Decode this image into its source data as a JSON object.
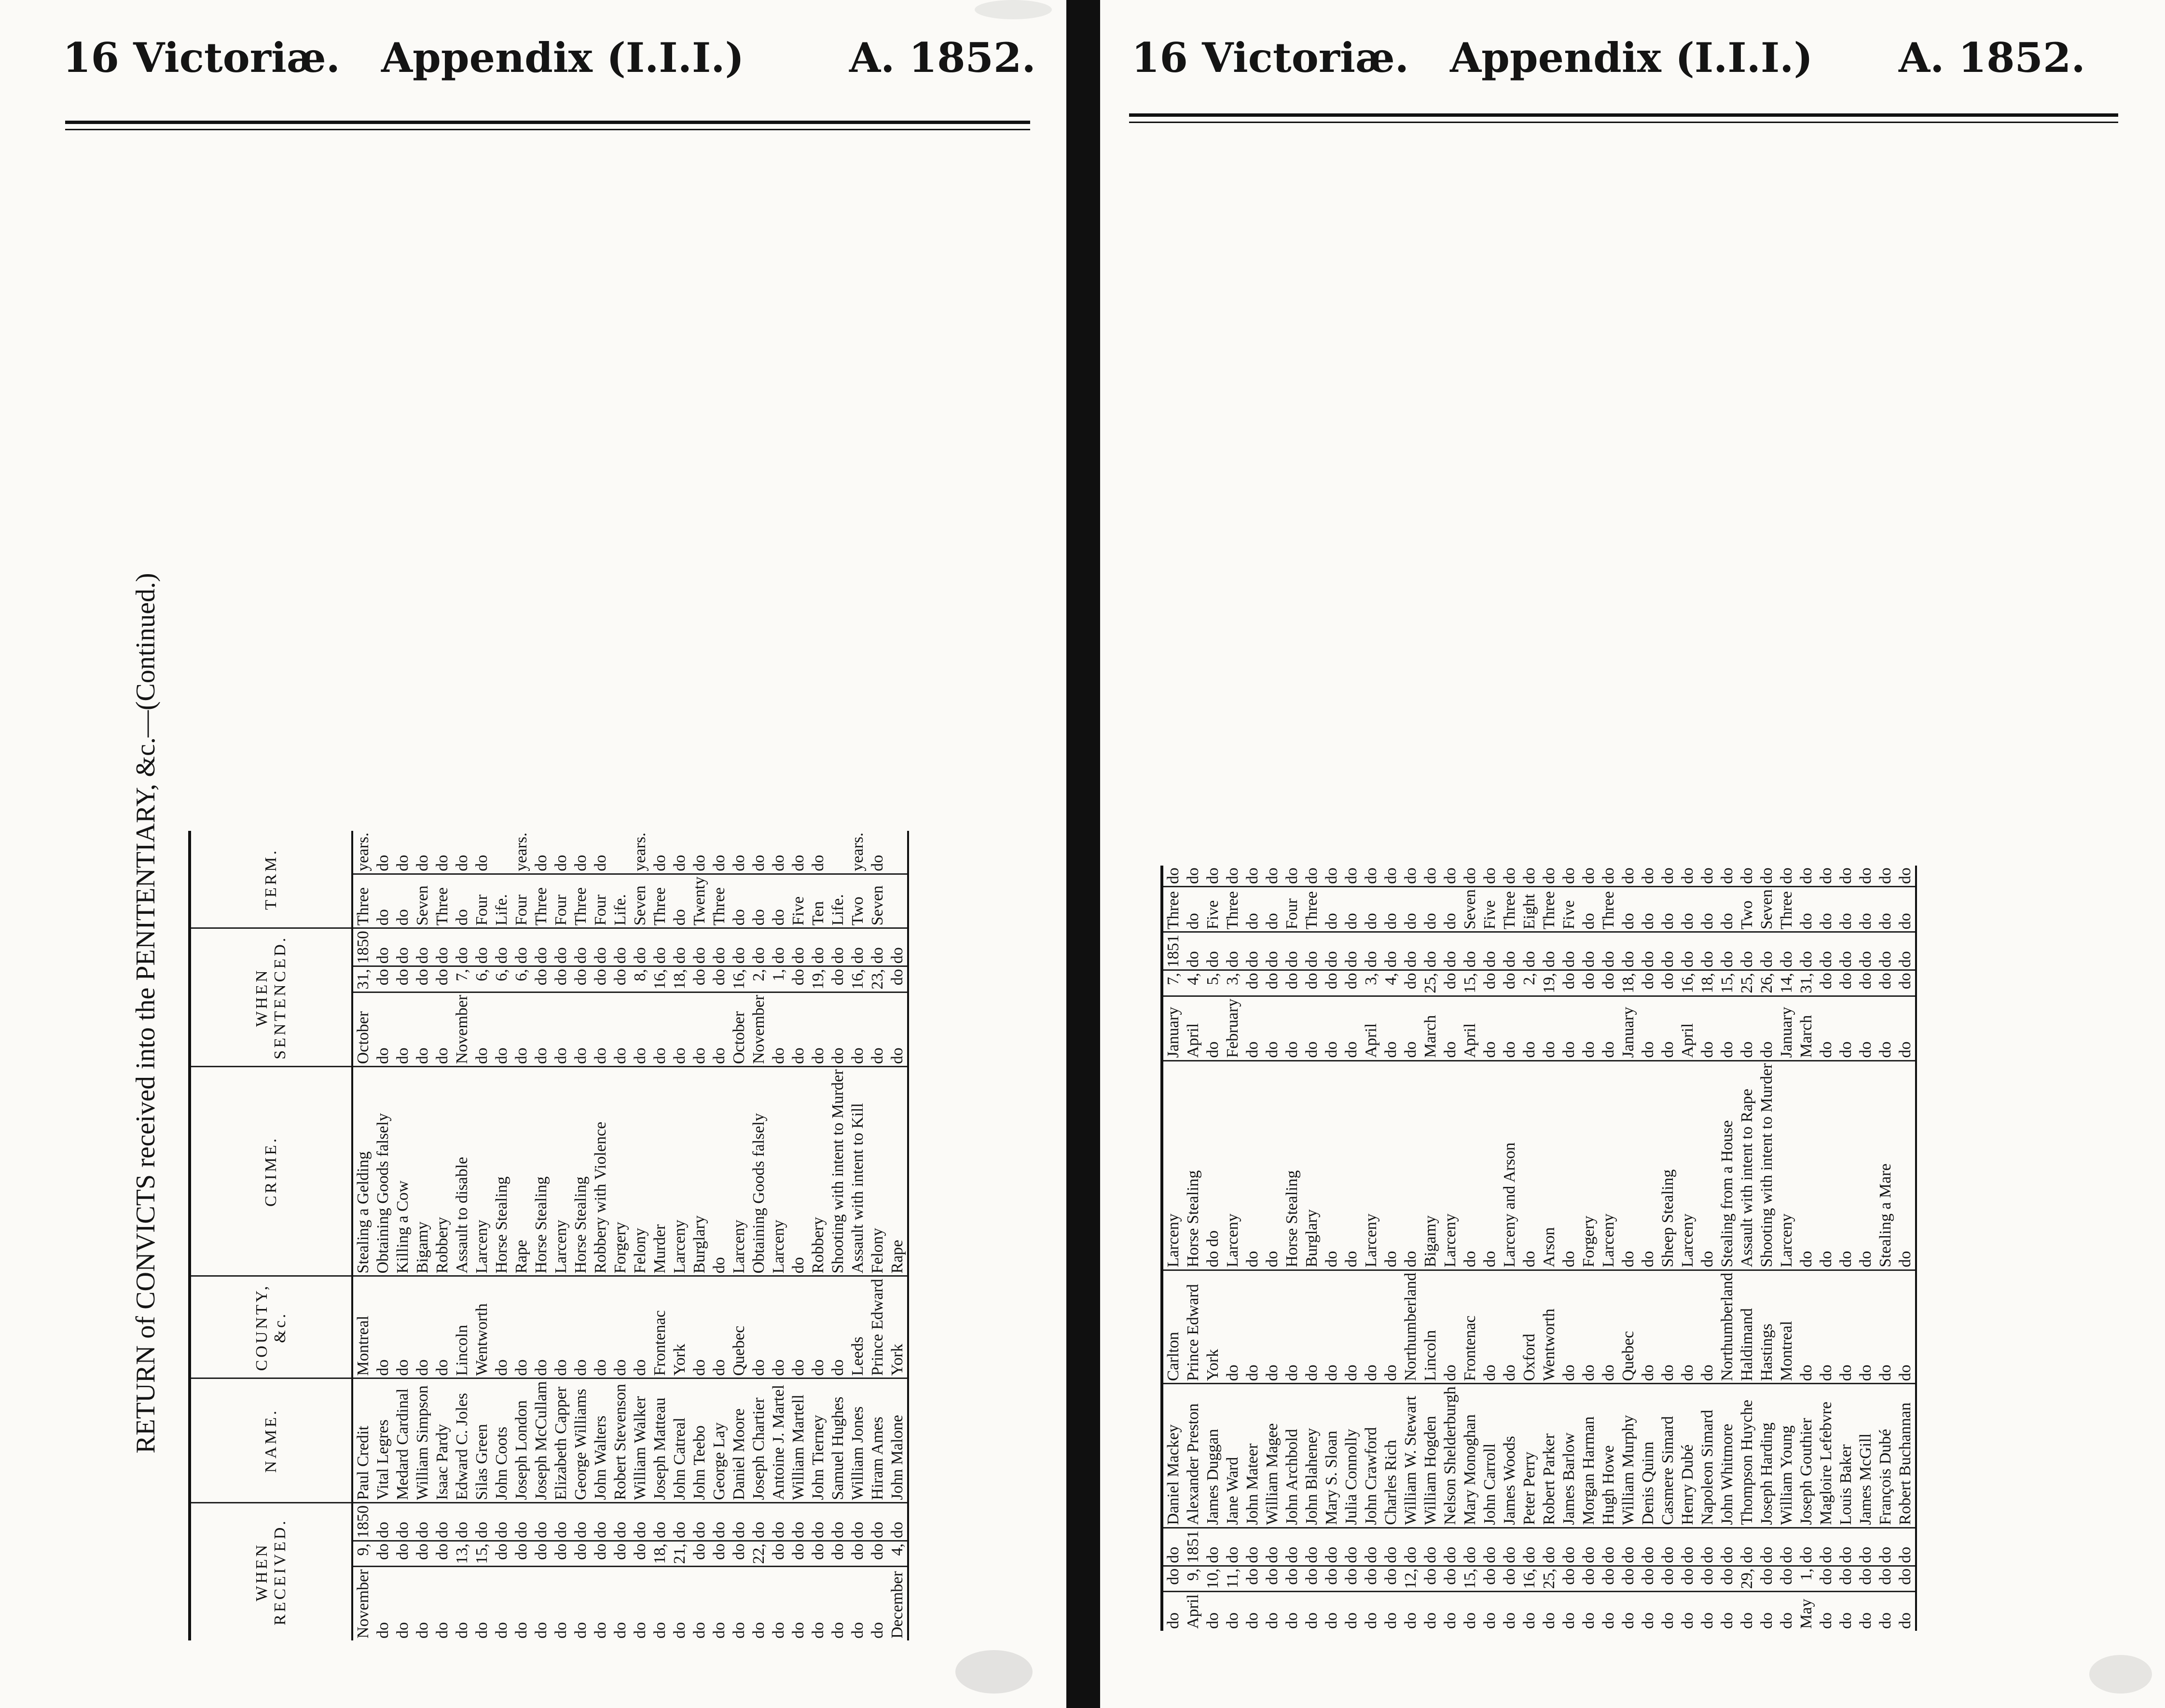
{
  "left_page": {
    "header": {
      "session": "16 Victoriæ.",
      "appendix": "Appendix (I.I.I.)",
      "year": "A. 1852."
    },
    "title": "RETURN of CONVICTS received into the PENITENTIARY, &c.—(Continued.)",
    "columns": {
      "when_received": "WHEN RECEIVED.",
      "name": "NAME.",
      "county": "COUNTY, &c.",
      "crime": "CRIME.",
      "when_sentenced": "WHEN SENTENCED.",
      "term": "TERM."
    },
    "rows": [
      {
        "rm": "November",
        "rd": "9,",
        "ry": "1850",
        "name": "Paul Credit",
        "county": "Montreal",
        "crime": "Stealing a Gelding",
        "sm": "October",
        "sd": "31,",
        "sy": "1850",
        "tn": "Three",
        "tu": "years."
      },
      {
        "rm": "do",
        "rd": "do",
        "ry": "do",
        "name": "Vital Legres",
        "county": "do",
        "crime": "Obtaining Goods falsely",
        "sm": "do",
        "sd": "do",
        "sy": "do",
        "tn": "do",
        "tu": "do"
      },
      {
        "rm": "do",
        "rd": "do",
        "ry": "do",
        "name": "Medard Cardinal",
        "county": "do",
        "crime": "Killing a Cow",
        "sm": "do",
        "sd": "do",
        "sy": "do",
        "tn": "do",
        "tu": "do"
      },
      {
        "rm": "do",
        "rd": "do",
        "ry": "do",
        "name": "William Simpson",
        "county": "do",
        "crime": "Bigamy",
        "sm": "do",
        "sd": "do",
        "sy": "do",
        "tn": "Seven",
        "tu": "do"
      },
      {
        "rm": "do",
        "rd": "do",
        "ry": "do",
        "name": "Isaac Pardy",
        "county": "do",
        "crime": "Robbery",
        "sm": "do",
        "sd": "do",
        "sy": "do",
        "tn": "Three",
        "tu": "do"
      },
      {
        "rm": "do",
        "rd": "13,",
        "ry": "do",
        "name": "Edward C. Joles",
        "county": "Lincoln",
        "crime": "Assault to disable",
        "sm": "November",
        "sd": "7,",
        "sy": "do",
        "tn": "do",
        "tu": "do"
      },
      {
        "rm": "do",
        "rd": "15,",
        "ry": "do",
        "name": "Silas Green",
        "county": "Wentworth",
        "crime": "Larceny",
        "sm": "do",
        "sd": "6,",
        "sy": "do",
        "tn": "Four",
        "tu": "do"
      },
      {
        "rm": "do",
        "rd": "do",
        "ry": "do",
        "name": "John Coots",
        "county": "do",
        "crime": "Horse Stealing",
        "sm": "do",
        "sd": "6,",
        "sy": "do",
        "tn": "Life.",
        "tu": ""
      },
      {
        "rm": "do",
        "rd": "do",
        "ry": "do",
        "name": "Joseph London",
        "county": "do",
        "crime": "Rape",
        "sm": "do",
        "sd": "6,",
        "sy": "do",
        "tn": "Four",
        "tu": "years."
      },
      {
        "rm": "do",
        "rd": "do",
        "ry": "do",
        "name": "Joseph McCullam",
        "county": "do",
        "crime": "Horse Stealing",
        "sm": "do",
        "sd": "do",
        "sy": "do",
        "tn": "Three",
        "tu": "do"
      },
      {
        "rm": "do",
        "rd": "do",
        "ry": "do",
        "name": "Elizabeth Capper",
        "county": "do",
        "crime": "Larceny",
        "sm": "do",
        "sd": "do",
        "sy": "do",
        "tn": "Four",
        "tu": "do"
      },
      {
        "rm": "do",
        "rd": "do",
        "ry": "do",
        "name": "George Williams",
        "county": "do",
        "crime": "Horse Stealing",
        "sm": "do",
        "sd": "do",
        "sy": "do",
        "tn": "Three",
        "tu": "do"
      },
      {
        "rm": "do",
        "rd": "do",
        "ry": "do",
        "name": "John Walters",
        "county": "do",
        "crime": "Robbery with Violence",
        "sm": "do",
        "sd": "do",
        "sy": "do",
        "tn": "Four",
        "tu": "do"
      },
      {
        "rm": "do",
        "rd": "do",
        "ry": "do",
        "name": "Robert Stevenson",
        "county": "do",
        "crime": "Forgery",
        "sm": "do",
        "sd": "do",
        "sy": "do",
        "tn": "Life.",
        "tu": ""
      },
      {
        "rm": "do",
        "rd": "do",
        "ry": "do",
        "name": "William Walker",
        "county": "do",
        "crime": "Felony",
        "sm": "do",
        "sd": "8,",
        "sy": "do",
        "tn": "Seven",
        "tu": "years."
      },
      {
        "rm": "do",
        "rd": "18,",
        "ry": "do",
        "name": "Joseph Matteau",
        "county": "Frontenac",
        "crime": "Murder",
        "sm": "do",
        "sd": "16,",
        "sy": "do",
        "tn": "Three",
        "tu": "do"
      },
      {
        "rm": "do",
        "rd": "21,",
        "ry": "do",
        "name": "John Catreal",
        "county": "York",
        "crime": "Larceny",
        "sm": "do",
        "sd": "18,",
        "sy": "do",
        "tn": "do",
        "tu": "do"
      },
      {
        "rm": "do",
        "rd": "do",
        "ry": "do",
        "name": "John Teebo",
        "county": "do",
        "crime": "Burglary",
        "sm": "do",
        "sd": "do",
        "sy": "do",
        "tn": "Twenty",
        "tu": "do"
      },
      {
        "rm": "do",
        "rd": "do",
        "ry": "do",
        "name": "George Lay",
        "county": "do",
        "crime": "do",
        "sm": "do",
        "sd": "do",
        "sy": "do",
        "tn": "Three",
        "tu": "do"
      },
      {
        "rm": "do",
        "rd": "do",
        "ry": "do",
        "name": "Daniel Moore",
        "county": "Quebec",
        "crime": "Larceny",
        "sm": "October",
        "sd": "16,",
        "sy": "do",
        "tn": "do",
        "tu": "do"
      },
      {
        "rm": "do",
        "rd": "22,",
        "ry": "do",
        "name": "Joseph Chartier",
        "county": "do",
        "crime": "Obtaining Goods falsely",
        "sm": "November",
        "sd": "2,",
        "sy": "do",
        "tn": "do",
        "tu": "do"
      },
      {
        "rm": "do",
        "rd": "do",
        "ry": "do",
        "name": "Antoine J. Martel",
        "county": "do",
        "crime": "Larceny",
        "sm": "do",
        "sd": "1,",
        "sy": "do",
        "tn": "do",
        "tu": "do"
      },
      {
        "rm": "do",
        "rd": "do",
        "ry": "do",
        "name": "William Martell",
        "county": "do",
        "crime": "do",
        "sm": "do",
        "sd": "do",
        "sy": "do",
        "tn": "Five",
        "tu": "do"
      },
      {
        "rm": "do",
        "rd": "do",
        "ry": "do",
        "name": "John Tierney",
        "county": "do",
        "crime": "Robbery",
        "sm": "do",
        "sd": "19,",
        "sy": "do",
        "tn": "Ten",
        "tu": "do"
      },
      {
        "rm": "do",
        "rd": "do",
        "ry": "do",
        "name": "Samuel Hughes",
        "county": "do",
        "crime": "Shooting with intent to Murder",
        "sm": "do",
        "sd": "do",
        "sy": "do",
        "tn": "Life.",
        "tu": ""
      },
      {
        "rm": "do",
        "rd": "do",
        "ry": "do",
        "name": "William Jones",
        "county": "Leeds",
        "crime": "Assault with intent to Kill",
        "sm": "do",
        "sd": "16,",
        "sy": "do",
        "tn": "Two",
        "tu": "years."
      },
      {
        "rm": "do",
        "rd": "do",
        "ry": "do",
        "name": "Hiram Ames",
        "county": "Prince Edward",
        "crime": "Felony",
        "sm": "do",
        "sd": "23,",
        "sy": "do",
        "tn": "Seven",
        "tu": "do"
      },
      {
        "rm": "December",
        "rd": "4,",
        "ry": "do",
        "name": "John Malone",
        "county": "York",
        "crime": "Rape",
        "sm": "do",
        "sd": "do",
        "sy": "do",
        "tn": "",
        "tu": ""
      }
    ]
  },
  "right_page": {
    "header": {
      "session": "16 Victoriæ.",
      "appendix": "Appendix (I.I.I.)",
      "year": "A. 1852."
    },
    "rows": [
      {
        "rm": "do",
        "rd": "do",
        "ry": "do",
        "name": "Daniel Mackey",
        "county": "Carlton",
        "crime": "Larceny",
        "sm": "January",
        "sd": "7,",
        "sy": "1851",
        "tn": "Three",
        "tu": "do"
      },
      {
        "rm": "April",
        "rd": "9,",
        "ry": "1851",
        "name": "Alexander Preston",
        "county": "Prince Edward",
        "crime": "Horse Stealing",
        "sm": "April",
        "sd": "4,",
        "sy": "do",
        "tn": "do",
        "tu": "do"
      },
      {
        "rm": "do",
        "rd": "10,",
        "ry": "do",
        "name": "James Duggan",
        "county": "York",
        "crime": "do    do",
        "sm": "do",
        "sd": "5,",
        "sy": "do",
        "tn": "Five",
        "tu": "do"
      },
      {
        "rm": "do",
        "rd": "11,",
        "ry": "do",
        "name": "Jane Ward",
        "county": "do",
        "crime": "Larceny",
        "sm": "February",
        "sd": "3,",
        "sy": "do",
        "tn": "Three",
        "tu": "do"
      },
      {
        "rm": "do",
        "rd": "do",
        "ry": "do",
        "name": "John Mateer",
        "county": "do",
        "crime": "do",
        "sm": "do",
        "sd": "do",
        "sy": "do",
        "tn": "do",
        "tu": "do"
      },
      {
        "rm": "do",
        "rd": "do",
        "ry": "do",
        "name": "William Magee",
        "county": "do",
        "crime": "do",
        "sm": "do",
        "sd": "do",
        "sy": "do",
        "tn": "do",
        "tu": "do"
      },
      {
        "rm": "do",
        "rd": "do",
        "ry": "do",
        "name": "John Archbold",
        "county": "do",
        "crime": "Horse Stealing",
        "sm": "do",
        "sd": "do",
        "sy": "do",
        "tn": "Four",
        "tu": "do"
      },
      {
        "rm": "do",
        "rd": "do",
        "ry": "do",
        "name": "John Blaheney",
        "county": "do",
        "crime": "Burglary",
        "sm": "do",
        "sd": "do",
        "sy": "do",
        "tn": "Three",
        "tu": "do"
      },
      {
        "rm": "do",
        "rd": "do",
        "ry": "do",
        "name": "Mary S. Sloan",
        "county": "do",
        "crime": "do",
        "sm": "do",
        "sd": "do",
        "sy": "do",
        "tn": "do",
        "tu": "do"
      },
      {
        "rm": "do",
        "rd": "do",
        "ry": "do",
        "name": "Julia Connolly",
        "county": "do",
        "crime": "do",
        "sm": "do",
        "sd": "do",
        "sy": "do",
        "tn": "do",
        "tu": "do"
      },
      {
        "rm": "do",
        "rd": "do",
        "ry": "do",
        "name": "John Crawford",
        "county": "do",
        "crime": "Larceny",
        "sm": "April",
        "sd": "3,",
        "sy": "do",
        "tn": "do",
        "tu": "do"
      },
      {
        "rm": "do",
        "rd": "do",
        "ry": "do",
        "name": "Charles Rich",
        "county": "do",
        "crime": "do",
        "sm": "do",
        "sd": "4,",
        "sy": "do",
        "tn": "do",
        "tu": "do"
      },
      {
        "rm": "do",
        "rd": "12,",
        "ry": "do",
        "name": "William W. Stewart",
        "county": "Northumberland",
        "crime": "do",
        "sm": "do",
        "sd": "do",
        "sy": "do",
        "tn": "do",
        "tu": "do"
      },
      {
        "rm": "do",
        "rd": "do",
        "ry": "do",
        "name": "William Hogden",
        "county": "Lincoln",
        "crime": "Bigamy",
        "sm": "March",
        "sd": "25,",
        "sy": "do",
        "tn": "do",
        "tu": "do"
      },
      {
        "rm": "do",
        "rd": "do",
        "ry": "do",
        "name": "Nelson Shelderburgh",
        "county": "do",
        "crime": "Larceny",
        "sm": "do",
        "sd": "do",
        "sy": "do",
        "tn": "do",
        "tu": "do"
      },
      {
        "rm": "do",
        "rd": "15,",
        "ry": "do",
        "name": "Mary Monoghan",
        "county": "Frontenac",
        "crime": "do",
        "sm": "April",
        "sd": "15,",
        "sy": "do",
        "tn": "Seven",
        "tu": "do"
      },
      {
        "rm": "do",
        "rd": "do",
        "ry": "do",
        "name": "John Carroll",
        "county": "do",
        "crime": "do",
        "sm": "do",
        "sd": "do",
        "sy": "do",
        "tn": "Five",
        "tu": "do"
      },
      {
        "rm": "do",
        "rd": "do",
        "ry": "do",
        "name": "James Woods",
        "county": "do",
        "crime": "Larceny and Arson",
        "sm": "do",
        "sd": "do",
        "sy": "do",
        "tn": "Three",
        "tu": "do"
      },
      {
        "rm": "do",
        "rd": "16,",
        "ry": "do",
        "name": "Peter Perry",
        "county": "Oxford",
        "crime": "do",
        "sm": "do",
        "sd": "2,",
        "sy": "do",
        "tn": "Eight",
        "tu": "do"
      },
      {
        "rm": "do",
        "rd": "25,",
        "ry": "do",
        "name": "Robert Parker",
        "county": "Wentworth",
        "crime": "Arson",
        "sm": "do",
        "sd": "19,",
        "sy": "do",
        "tn": "Three",
        "tu": "do"
      },
      {
        "rm": "do",
        "rd": "do",
        "ry": "do",
        "name": "James Barlow",
        "county": "do",
        "crime": "do",
        "sm": "do",
        "sd": "do",
        "sy": "do",
        "tn": "Five",
        "tu": "do"
      },
      {
        "rm": "do",
        "rd": "do",
        "ry": "do",
        "name": "Morgan Harman",
        "county": "do",
        "crime": "Forgery",
        "sm": "do",
        "sd": "do",
        "sy": "do",
        "tn": "do",
        "tu": "do"
      },
      {
        "rm": "do",
        "rd": "do",
        "ry": "do",
        "name": "Hugh Howe",
        "county": "do",
        "crime": "Larceny",
        "sm": "do",
        "sd": "do",
        "sy": "do",
        "tn": "Three",
        "tu": "do"
      },
      {
        "rm": "do",
        "rd": "do",
        "ry": "do",
        "name": "William Murphy",
        "county": "Quebec",
        "crime": "do",
        "sm": "January",
        "sd": "18,",
        "sy": "do",
        "tn": "do",
        "tu": "do"
      },
      {
        "rm": "do",
        "rd": "do",
        "ry": "do",
        "name": "Denis Quinn",
        "county": "do",
        "crime": "do",
        "sm": "do",
        "sd": "do",
        "sy": "do",
        "tn": "do",
        "tu": "do"
      },
      {
        "rm": "do",
        "rd": "do",
        "ry": "do",
        "name": "Casmere Simard",
        "county": "do",
        "crime": "Sheep Stealing",
        "sm": "do",
        "sd": "do",
        "sy": "do",
        "tn": "do",
        "tu": "do"
      },
      {
        "rm": "do",
        "rd": "do",
        "ry": "do",
        "name": "Henry Dubé",
        "county": "do",
        "crime": "Larceny",
        "sm": "April",
        "sd": "16,",
        "sy": "do",
        "tn": "do",
        "tu": "do"
      },
      {
        "rm": "do",
        "rd": "do",
        "ry": "do",
        "name": "Napoleon Simard",
        "county": "do",
        "crime": "do",
        "sm": "do",
        "sd": "18,",
        "sy": "do",
        "tn": "do",
        "tu": "do"
      },
      {
        "rm": "do",
        "rd": "do",
        "ry": "do",
        "name": "John Whitmore",
        "county": "Northumberland",
        "crime": "Stealing from a House",
        "sm": "do",
        "sd": "15,",
        "sy": "do",
        "tn": "do",
        "tu": "do"
      },
      {
        "rm": "do",
        "rd": "29,",
        "ry": "do",
        "name": "Thompson Huyche",
        "county": "Haldimand",
        "crime": "Assault with intent to Rape",
        "sm": "do",
        "sd": "25,",
        "sy": "do",
        "tn": "Two",
        "tu": "do"
      },
      {
        "rm": "do",
        "rd": "do",
        "ry": "do",
        "name": "Joseph Harding",
        "county": "Hastings",
        "crime": "Shooting with intent to Murder",
        "sm": "do",
        "sd": "26,",
        "sy": "do",
        "tn": "Seven",
        "tu": "do"
      },
      {
        "rm": "do",
        "rd": "do",
        "ry": "do",
        "name": "William Young",
        "county": "Montreal",
        "crime": "Larceny",
        "sm": "January",
        "sd": "14,",
        "sy": "do",
        "tn": "Three",
        "tu": "do"
      },
      {
        "rm": "May",
        "rd": "1,",
        "ry": "do",
        "name": "Joseph Gouthier",
        "county": "do",
        "crime": "do",
        "sm": "March",
        "sd": "31,",
        "sy": "do",
        "tn": "do",
        "tu": "do"
      },
      {
        "rm": "do",
        "rd": "do",
        "ry": "do",
        "name": "Magloire Lefebvre",
        "county": "do",
        "crime": "do",
        "sm": "do",
        "sd": "do",
        "sy": "do",
        "tn": "do",
        "tu": "do"
      },
      {
        "rm": "do",
        "rd": "do",
        "ry": "do",
        "name": "Louis Baker",
        "county": "do",
        "crime": "do",
        "sm": "do",
        "sd": "do",
        "sy": "do",
        "tn": "do",
        "tu": "do"
      },
      {
        "rm": "do",
        "rd": "do",
        "ry": "do",
        "name": "James McGill",
        "county": "do",
        "crime": "do",
        "sm": "do",
        "sd": "do",
        "sy": "do",
        "tn": "do",
        "tu": "do"
      },
      {
        "rm": "do",
        "rd": "do",
        "ry": "do",
        "name": "François Dubé",
        "county": "do",
        "crime": "Stealing a Mare",
        "sm": "do",
        "sd": "do",
        "sy": "do",
        "tn": "do",
        "tu": "do"
      },
      {
        "rm": "do",
        "rd": "do",
        "ry": "do",
        "name": "Robert Buchannan",
        "county": "do",
        "crime": "do",
        "sm": "do",
        "sd": "do",
        "sy": "do",
        "tn": "do",
        "tu": "do"
      }
    ]
  }
}
